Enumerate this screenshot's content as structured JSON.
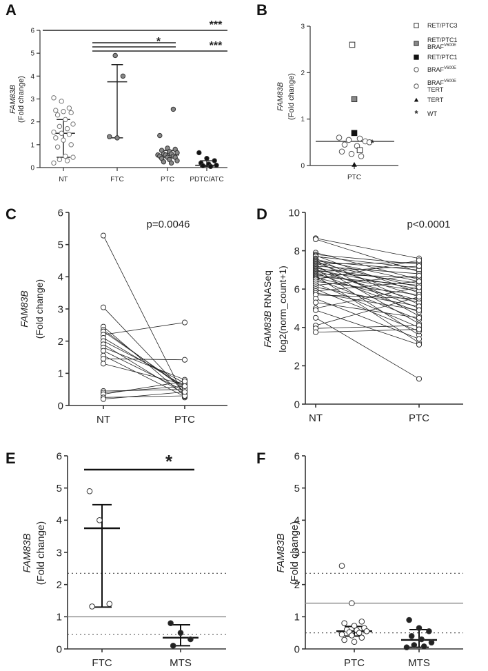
{
  "chart_data": [
    {
      "panel": "A",
      "type": "scatter",
      "ylabel": [
        "FAM83B",
        "(Fold change)"
      ],
      "categories": [
        "NT",
        "FTC",
        "PTC",
        "PDTC/ATC"
      ],
      "ylim": [
        0,
        6
      ],
      "yticks": [
        0,
        1,
        2,
        3,
        4,
        5,
        6
      ],
      "groups": [
        {
          "category": "NT",
          "median": 1.5,
          "error": [
            0.45,
            2.1
          ],
          "points": [
            3.05,
            2.9,
            2.6,
            2.5,
            2.45,
            2.4,
            2.3,
            2.1,
            1.9,
            1.8,
            1.7,
            1.55,
            1.5,
            1.45,
            1.3,
            1.2,
            1.0,
            0.9,
            0.5,
            0.45,
            0.35,
            0.3,
            0.2
          ]
        },
        {
          "category": "FTC",
          "median": 3.75,
          "error": [
            1.3,
            4.5
          ],
          "points": [
            4.9,
            4.0,
            1.35,
            1.3
          ]
        },
        {
          "category": "PTC",
          "median": 0.55,
          "error": [
            0.45,
            0.75
          ],
          "points": [
            2.55,
            1.4,
            0.85,
            0.8,
            0.75,
            0.7,
            0.65,
            0.6,
            0.6,
            0.55,
            0.55,
            0.5,
            0.5,
            0.45,
            0.45,
            0.4,
            0.35,
            0.3,
            0.25,
            0.2
          ]
        },
        {
          "category": "PDTC/ATC",
          "median": 0.1,
          "error": [
            0.05,
            0.3
          ],
          "points": [
            0.65,
            0.4,
            0.3,
            0.2,
            0.15,
            0.1,
            0.08,
            0.05
          ]
        }
      ],
      "significance": [
        {
          "from": "NT",
          "to": "PDTC/ATC",
          "label": "***"
        },
        {
          "from": "FTC",
          "to": "PTC",
          "label": "*"
        },
        {
          "from": "FTC",
          "to": "PDTC/ATC",
          "label": "***"
        }
      ]
    },
    {
      "panel": "B",
      "type": "scatter",
      "ylabel": [
        "FAM83B",
        "(Fold change)"
      ],
      "categories": [
        "PTC"
      ],
      "ylim": [
        0,
        3
      ],
      "yticks": [
        0,
        1,
        2,
        3
      ],
      "median": 0.52,
      "points": [
        {
          "value": 2.6,
          "type": "RET/PTC3"
        },
        {
          "value": 1.43,
          "type": "RET/PTC1 BRAF V600E"
        },
        {
          "value": 0.7,
          "type": "RET/PTC1"
        },
        {
          "value": 0.6,
          "type": "BRAF V600E"
        },
        {
          "value": 0.58,
          "type": "BRAF V600E"
        },
        {
          "value": 0.55,
          "type": "BRAF V600E"
        },
        {
          "value": 0.52,
          "type": "BRAF V600E"
        },
        {
          "value": 0.5,
          "type": "BRAF V600E TERT"
        },
        {
          "value": 0.48,
          "type": "WT"
        },
        {
          "value": 0.45,
          "type": "BRAF V600E"
        },
        {
          "value": 0.42,
          "type": "BRAF V600E"
        },
        {
          "value": 0.33,
          "type": "RET/PTC3"
        },
        {
          "value": 0.3,
          "type": "BRAF V600E"
        },
        {
          "value": 0.25,
          "type": "BRAF V600E"
        },
        {
          "value": 0.2,
          "type": "BRAF V600E"
        },
        {
          "value": 0.02,
          "type": "TERT"
        }
      ],
      "legend": [
        {
          "marker": "square-open",
          "label": "RET/PTC3"
        },
        {
          "marker": "square-gray",
          "label": "RET/PTC1",
          "label2": "BRAF",
          "sup2": "V600E"
        },
        {
          "marker": "square-black",
          "label": "RET/PTC1"
        },
        {
          "marker": "circle-open",
          "label": "BRAF",
          "sup": "V600E"
        },
        {
          "marker": "circle-open",
          "label": "BRAF",
          "sup": "V600E",
          "label2": "TERT"
        },
        {
          "marker": "triangle",
          "label": "TERT"
        },
        {
          "marker": "star",
          "label": "WT"
        }
      ]
    },
    {
      "panel": "C",
      "type": "line",
      "ylabel": [
        "FAM83B",
        "(Fold change)"
      ],
      "categories": [
        "NT",
        "PTC"
      ],
      "ylim": [
        0,
        6
      ],
      "yticks": [
        0,
        1,
        2,
        3,
        4,
        5,
        6
      ],
      "annotation": "p=0.0046",
      "pairs": [
        [
          5.28,
          0.25
        ],
        [
          3.05,
          0.4
        ],
        [
          2.45,
          0.3
        ],
        [
          2.35,
          0.5
        ],
        [
          2.3,
          0.55
        ],
        [
          2.2,
          2.58
        ],
        [
          2.1,
          0.6
        ],
        [
          2.0,
          0.7
        ],
        [
          1.9,
          0.35
        ],
        [
          1.8,
          0.8
        ],
        [
          1.7,
          0.45
        ],
        [
          1.55,
          0.28
        ],
        [
          1.45,
          1.42
        ],
        [
          1.3,
          0.65
        ],
        [
          0.45,
          0.5
        ],
        [
          0.4,
          0.6
        ],
        [
          0.35,
          0.75
        ],
        [
          0.25,
          0.3
        ],
        [
          0.2,
          0.42
        ]
      ]
    },
    {
      "panel": "D",
      "type": "line",
      "ylabel": [
        "FAM83B RNASeq",
        "log2(norm_count+1)"
      ],
      "categories": [
        "NT",
        "PTC"
      ],
      "ylim": [
        0,
        10
      ],
      "yticks": [
        0,
        2,
        4,
        6,
        8,
        10
      ],
      "annotation": "p<0.0001",
      "pairs": [
        [
          8.65,
          7.6
        ],
        [
          8.6,
          6.9
        ],
        [
          7.9,
          6.5
        ],
        [
          7.8,
          7.3
        ],
        [
          7.75,
          5.8
        ],
        [
          7.7,
          7.1
        ],
        [
          7.6,
          5.2
        ],
        [
          7.55,
          6.4
        ],
        [
          7.5,
          4.6
        ],
        [
          7.45,
          7.0
        ],
        [
          7.4,
          6.1
        ],
        [
          7.35,
          5.6
        ],
        [
          7.3,
          7.4
        ],
        [
          7.25,
          4.2
        ],
        [
          7.2,
          6.8
        ],
        [
          7.15,
          5.0
        ],
        [
          7.1,
          6.3
        ],
        [
          7.05,
          3.6
        ],
        [
          7.0,
          6.0
        ],
        [
          6.95,
          5.4
        ],
        [
          6.9,
          7.2
        ],
        [
          6.85,
          4.8
        ],
        [
          6.8,
          6.6
        ],
        [
          6.75,
          5.9
        ],
        [
          6.7,
          3.2
        ],
        [
          6.65,
          6.2
        ],
        [
          6.6,
          5.3
        ],
        [
          6.55,
          4.4
        ],
        [
          6.5,
          7.5
        ],
        [
          6.4,
          5.7
        ],
        [
          6.3,
          4.0
        ],
        [
          6.2,
          6.7
        ],
        [
          6.1,
          5.1
        ],
        [
          6.0,
          3.8
        ],
        [
          5.9,
          6.4
        ],
        [
          5.8,
          4.9
        ],
        [
          5.7,
          5.5
        ],
        [
          5.5,
          3.4
        ],
        [
          5.3,
          4.5
        ],
        [
          5.0,
          6.1
        ],
        [
          4.9,
          3.1
        ],
        [
          4.5,
          1.32
        ],
        [
          4.1,
          5.6
        ],
        [
          3.95,
          4.1
        ],
        [
          3.75,
          3.9
        ]
      ]
    },
    {
      "panel": "E",
      "type": "scatter",
      "ylabel": [
        "FAM83B",
        "(Fold change)"
      ],
      "categories": [
        "FTC",
        "MTS"
      ],
      "ylim": [
        0,
        6
      ],
      "yticks": [
        0,
        1,
        2,
        3,
        4,
        5,
        6
      ],
      "reference": {
        "solid": 1.0,
        "dotted": [
          0.45,
          2.35
        ]
      },
      "groups": [
        {
          "category": "FTC",
          "median": 3.75,
          "error": [
            1.3,
            4.48
          ],
          "points": [
            4.9,
            4.0,
            1.4,
            1.32
          ]
        },
        {
          "category": "MTS",
          "median": 0.35,
          "error": [
            0.1,
            0.75
          ],
          "points": [
            0.8,
            0.5,
            0.3,
            0.1
          ]
        }
      ],
      "significance": [
        {
          "from": "FTC",
          "to": "MTS",
          "label": "*"
        }
      ]
    },
    {
      "panel": "F",
      "type": "scatter",
      "ylabel": [
        "FAM83B",
        "(Fold change)"
      ],
      "categories": [
        "PTC",
        "MTS"
      ],
      "ylim": [
        0,
        6
      ],
      "yticks": [
        0,
        1,
        2,
        3,
        4,
        5,
        6
      ],
      "reference": {
        "solid": 1.42,
        "dotted": [
          0.5,
          2.35
        ]
      },
      "groups": [
        {
          "category": "PTC",
          "median": 0.55,
          "error": [
            0.4,
            0.7
          ],
          "points": [
            2.58,
            1.42,
            0.85,
            0.8,
            0.72,
            0.65,
            0.6,
            0.58,
            0.55,
            0.52,
            0.5,
            0.45,
            0.42,
            0.35,
            0.28,
            0.22
          ]
        },
        {
          "category": "MTS",
          "median": 0.28,
          "error": [
            0.05,
            0.6
          ],
          "points": [
            0.9,
            0.65,
            0.55,
            0.4,
            0.3,
            0.2,
            0.12,
            0.08,
            0.05
          ]
        }
      ]
    }
  ]
}
